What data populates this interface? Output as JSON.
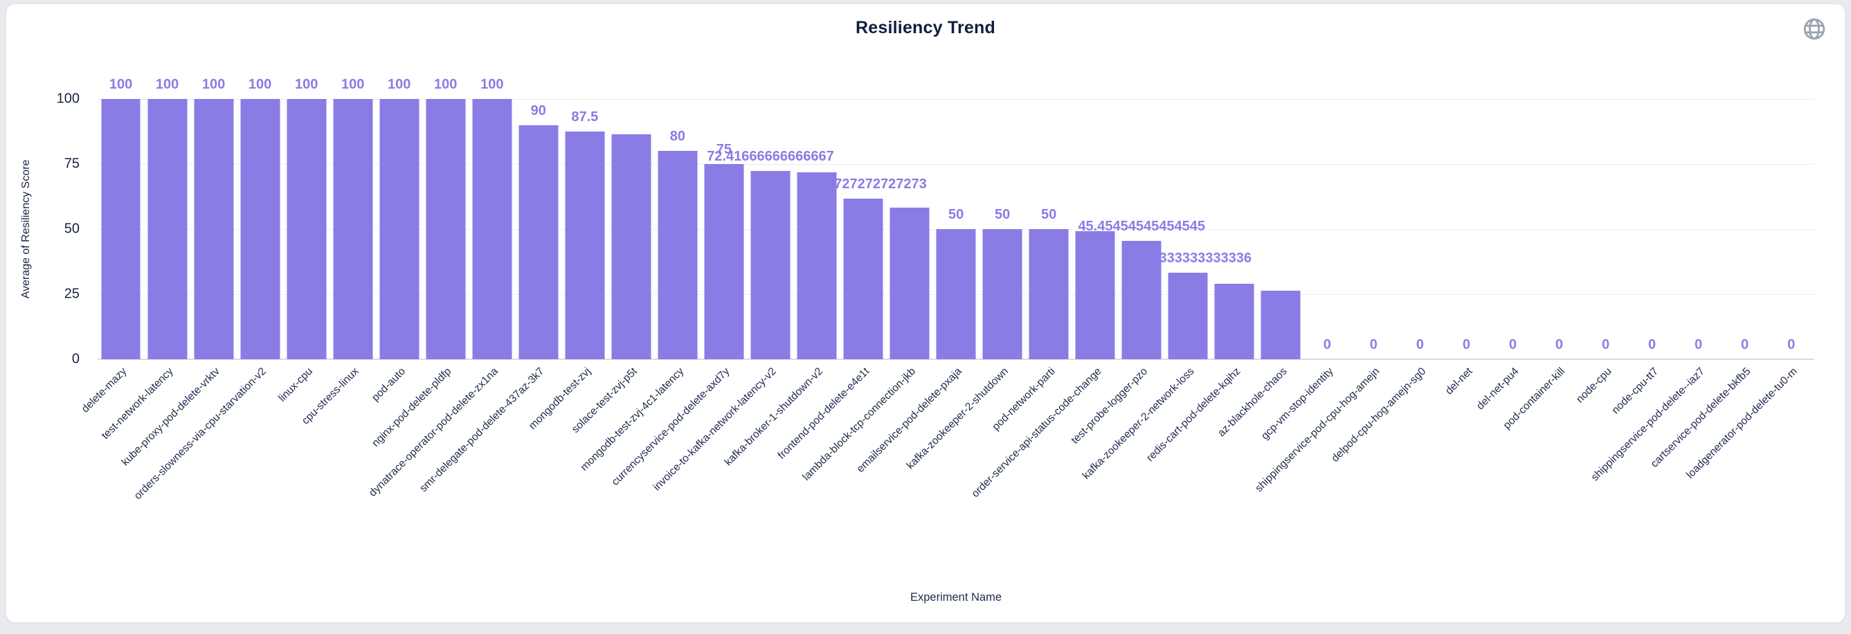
{
  "header": {
    "title": "Resiliency Trend",
    "globe_icon": "globe-icon"
  },
  "colors": {
    "bar": "#8a7ce5",
    "value_label": "#8a7ce5",
    "axis_text": "#1e2b4d",
    "title_text": "#101f3e",
    "gridline": "#ededf1",
    "card_background": "#ffffff",
    "page_background": "#e8eaee",
    "globe_icon": "#9aa3b2"
  },
  "chart_data": {
    "type": "bar",
    "title": "Resiliency Trend",
    "xlabel": "Experiment Name",
    "ylabel": "Average of Resiliency Score",
    "ylim": [
      0,
      100
    ],
    "yticks": [
      0,
      25,
      50,
      75,
      100
    ],
    "grid": true,
    "legend": "none",
    "x_label_rotation_deg": 45,
    "categories": [
      "delete-mazy",
      "test-network-latency",
      "kube-proxy-pod-delete-vrktv",
      "orders-slowness-via-cpu-starvation-v2",
      "linux-cpu",
      "cpu-stress-linux",
      "pod-auto",
      "nginx-pod-delete-pldfp",
      "dynatrace-operator-pod-delete-zx1na",
      "smr-delegate-pod-delete-437az-3k7",
      "mongodb-test-zvj",
      "solace-test-zvj-p5t",
      "mongodb-test-zvj-4c1-latency",
      "currencyservice-pod-delete-axd7y",
      "invoice-to-kafka-network-latency-v2",
      "kafka-broker-1-shutdown-v2",
      "frontend-pod-delete-e4e1t",
      "lambda-block-tcp-connection-jkb",
      "emailservice-pod-delete-pxaja",
      "kafka-zookeeper-2-shutdown",
      "pod-network-parti",
      "order-service-api-status-code-change",
      "test-probe-logger-pzo",
      "kafka-zookeeper-2-network-loss",
      "redis-cart-pod-delete-kqihz",
      "az-blackhole-chaos",
      "gcp-vm-stop-identity",
      "shippingservice-pod-cpu-hog-amejn",
      "delpod-cpu-hog-amejn-sg0",
      "del-net",
      "del-net-pu4",
      "pod-container-kill",
      "node-cpu",
      "node-cpu-tt7",
      "shippingservice-pod-delete--iaz7",
      "cartservice-pod-delete-bkfb5",
      "loadgenerator-pod-delete-tu0-m"
    ],
    "values": [
      100,
      100,
      100,
      100,
      100,
      100,
      100,
      100,
      100,
      90,
      87.5,
      86.4,
      80,
      75,
      72.41666666666667,
      71.7,
      61.72727272727273,
      58.3,
      50,
      50,
      50,
      49.1,
      45.45454545454545,
      33.33333333333336,
      29.1,
      26.4,
      0,
      0,
      0,
      0,
      0,
      0,
      0,
      0,
      0,
      0,
      0
    ],
    "value_labels_shown": [
      "100",
      "100",
      "100",
      "100",
      "100",
      "100",
      "100",
      "100",
      "100",
      "90",
      "87.5",
      "",
      "80",
      "75",
      "72.41666666666667",
      "",
      "61.72727272727273",
      "",
      "50",
      "50",
      "50",
      "",
      "45.45454545454545",
      "33.33333333333336",
      "",
      "",
      "0",
      "0",
      "0",
      "0",
      "0",
      "0",
      "0",
      "0",
      "0",
      "0",
      "0"
    ]
  }
}
